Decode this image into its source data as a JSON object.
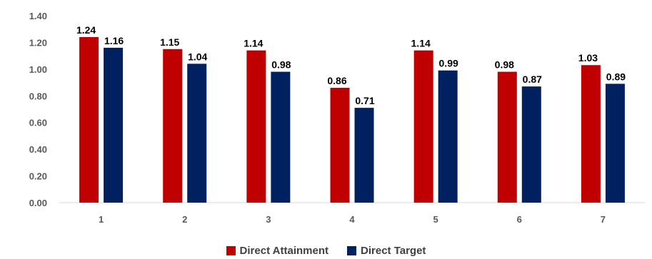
{
  "chart_data": {
    "type": "bar",
    "categories": [
      "1",
      "2",
      "3",
      "4",
      "5",
      "6",
      "7"
    ],
    "series": [
      {
        "name": "Direct Attainment",
        "values": [
          1.24,
          1.15,
          1.14,
          0.86,
          1.14,
          0.98,
          1.03
        ],
        "color": "#C00000"
      },
      {
        "name": "Direct Target",
        "values": [
          1.16,
          1.04,
          0.98,
          0.71,
          0.99,
          0.87,
          0.89
        ],
        "color": "#002060"
      }
    ],
    "yticks": [
      "0.00",
      "0.20",
      "0.40",
      "0.60",
      "0.80",
      "1.00",
      "1.20",
      "1.40"
    ],
    "ylim": [
      0,
      1.4
    ],
    "title": "",
    "xlabel": "",
    "ylabel": "",
    "legend_position": "bottom",
    "grid": false,
    "axis_color": "#D9D9D9"
  }
}
